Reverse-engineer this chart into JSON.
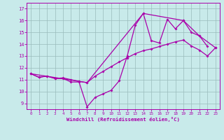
{
  "xlabel": "Windchill (Refroidissement éolien,°C)",
  "bg_color": "#c8eaea",
  "line_color": "#aa00aa",
  "grid_color": "#99bbbb",
  "x_ticks": [
    0,
    1,
    2,
    3,
    4,
    5,
    6,
    7,
    8,
    9,
    10,
    11,
    12,
    13,
    14,
    15,
    16,
    17,
    18,
    19,
    20,
    21,
    22,
    23
  ],
  "y_ticks": [
    9,
    10,
    11,
    12,
    13,
    14,
    15,
    16,
    17
  ],
  "xlim": [
    -0.5,
    23.5
  ],
  "ylim": [
    8.5,
    17.5
  ],
  "series1_x": [
    0,
    1,
    2,
    3,
    4,
    5,
    6,
    7,
    8,
    9,
    10,
    11,
    12,
    13,
    14,
    15,
    16,
    17,
    18,
    19,
    20,
    21,
    22
  ],
  "series1_y": [
    11.5,
    11.2,
    11.3,
    11.1,
    11.1,
    10.8,
    10.8,
    8.7,
    9.5,
    9.8,
    10.1,
    10.9,
    13.0,
    15.6,
    16.6,
    14.3,
    14.1,
    16.1,
    15.3,
    16.0,
    15.0,
    14.7,
    13.8
  ],
  "series2_x": [
    0,
    1,
    2,
    3,
    4,
    5,
    6,
    7,
    8,
    9,
    10,
    11,
    12,
    13,
    14,
    15,
    16,
    17,
    18,
    19,
    20,
    21,
    22,
    23
  ],
  "series2_y": [
    11.5,
    11.2,
    11.3,
    11.1,
    11.15,
    11.0,
    10.85,
    10.75,
    11.3,
    11.7,
    12.1,
    12.5,
    12.85,
    13.2,
    13.45,
    13.6,
    13.8,
    14.0,
    14.2,
    14.35,
    13.85,
    13.5,
    13.0,
    13.7
  ],
  "series3_x": [
    0,
    7,
    14,
    19,
    21,
    23
  ],
  "series3_y": [
    11.5,
    10.75,
    16.6,
    16.0,
    14.7,
    13.7
  ]
}
